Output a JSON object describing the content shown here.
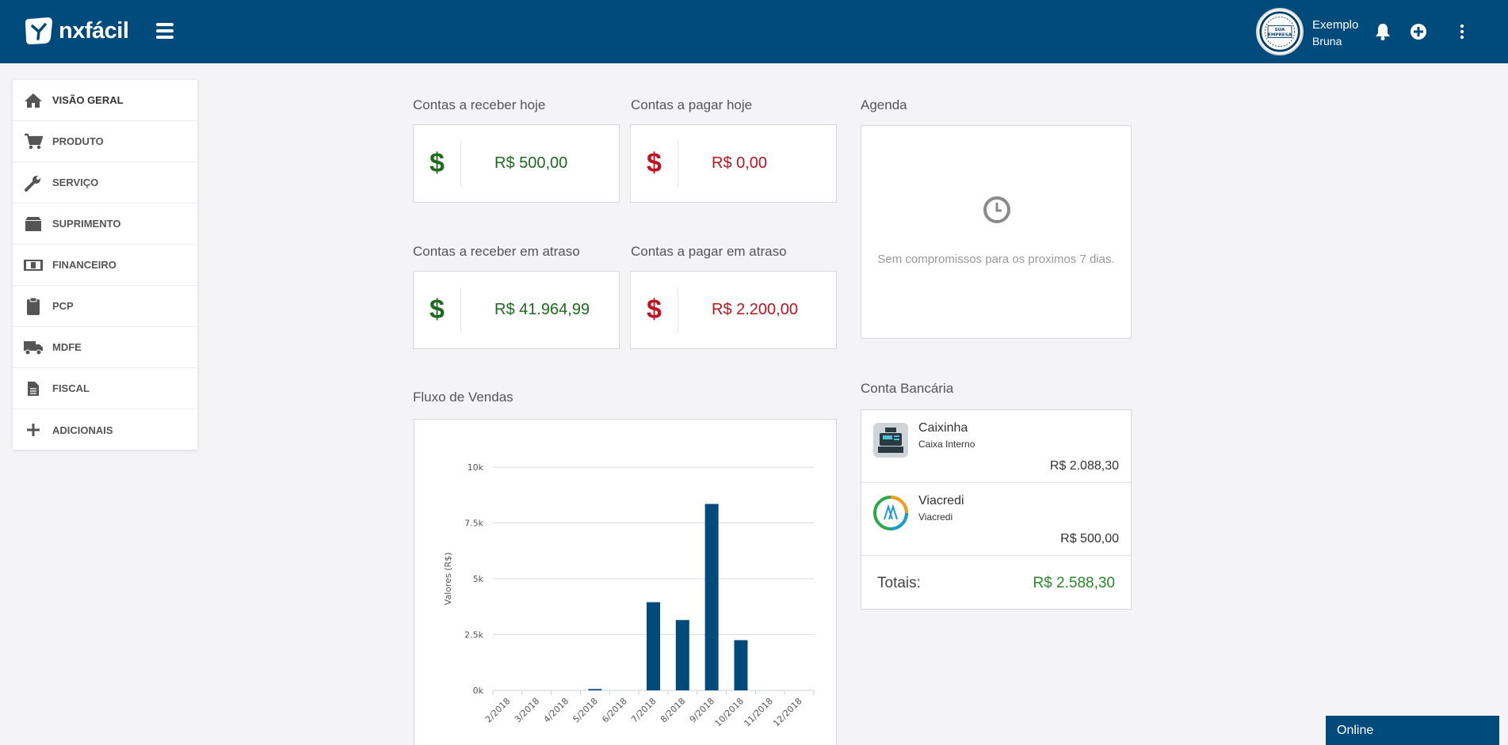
{
  "brand": {
    "name": "nxfácil"
  },
  "header": {
    "company_name": "Exemplo",
    "user_name": "Bruna",
    "avatar_text": "SUA EMPRESA",
    "icons": [
      "menu-icon",
      "bell-icon",
      "plus-circle-icon",
      "more-vertical-icon"
    ]
  },
  "sidebar": {
    "items": [
      {
        "label": "VISÃO GERAL",
        "icon": "home-icon"
      },
      {
        "label": "PRODUTO",
        "icon": "cart-icon"
      },
      {
        "label": "SERVIÇO",
        "icon": "wrench-icon"
      },
      {
        "label": "SUPRIMENTO",
        "icon": "box-icon"
      },
      {
        "label": "FINANCEIRO",
        "icon": "money-icon"
      },
      {
        "label": "PCP",
        "icon": "clipboard-icon"
      },
      {
        "label": "MDFE",
        "icon": "truck-icon"
      },
      {
        "label": "FISCAL",
        "icon": "document-icon"
      },
      {
        "label": "ADICIONAIS",
        "icon": "plus-icon"
      }
    ]
  },
  "kpis": {
    "receber_hoje": {
      "title": "Contas a receber hoje",
      "symbol": "$",
      "value": "R$ 500,00"
    },
    "pagar_hoje": {
      "title": "Contas a pagar hoje",
      "symbol": "$",
      "value": "R$ 0,00"
    },
    "receber_atraso": {
      "title": "Contas a receber em atraso",
      "symbol": "$",
      "value": "R$ 41.964,99"
    },
    "pagar_atraso": {
      "title": "Contas a pagar em atraso",
      "symbol": "$",
      "value": "R$ 2.200,00"
    }
  },
  "agenda": {
    "title": "Agenda",
    "empty_message": "Sem compromissos para os proximos 7 dias."
  },
  "bank": {
    "title": "Conta Bancária",
    "accounts": [
      {
        "name": "Caixinha",
        "sub": "Caixa Interno",
        "amount": "R$ 2.088,30",
        "icon": "cash-register-icon"
      },
      {
        "name": "Viacredi",
        "sub": "Viacredi",
        "amount": "R$ 500,00",
        "icon": "viacredi-logo-icon"
      }
    ],
    "totals_label": "Totais:",
    "totals_value": "R$ 2.588,30"
  },
  "sales_chart": {
    "title": "Fluxo de Vendas"
  },
  "chart_data": {
    "type": "bar",
    "title": "",
    "xlabel": "",
    "ylabel": "Valores (R$)",
    "categories": [
      "2/2018",
      "3/2018",
      "4/2018",
      "5/2018",
      "6/2018",
      "7/2018",
      "8/2018",
      "9/2018",
      "10/2018",
      "11/2018",
      "12/2018"
    ],
    "values": [
      0,
      0,
      0,
      60,
      0,
      3950,
      3150,
      8350,
      2250,
      0,
      0
    ],
    "ylim": [
      0,
      10000
    ],
    "yticks": [
      {
        "value": 0,
        "label": "0k"
      },
      {
        "value": 2500,
        "label": "2.5k"
      },
      {
        "value": 5000,
        "label": "5k"
      },
      {
        "value": 7500,
        "label": "7.5k"
      },
      {
        "value": 10000,
        "label": "10k"
      }
    ],
    "grid": true,
    "color": "#004a7c"
  },
  "status": {
    "label": "Online"
  },
  "colors": {
    "primary": "#004a7c",
    "positive": "#1e6a1e",
    "negative": "#c0131f",
    "total": "#2a8a2a"
  }
}
